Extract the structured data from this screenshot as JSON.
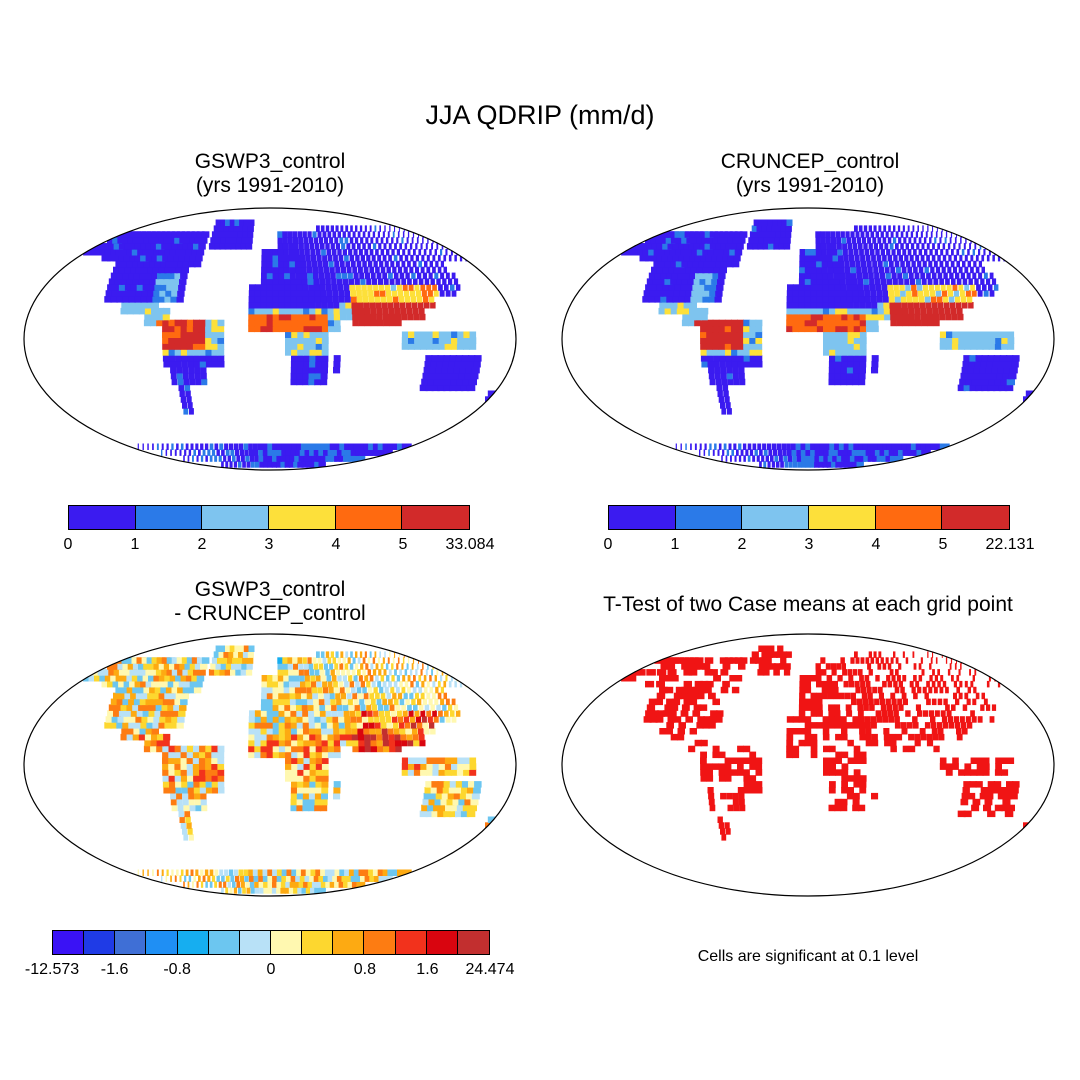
{
  "title": "JJA QDRIP (mm/d)",
  "panels": [
    {
      "id": "gswp3",
      "title_line1": "GSWP3_control",
      "title_line2": "(yrs 1991-2010)",
      "scheme": "abs",
      "colorbar": {
        "colors": [
          "#3b1bf0",
          "#2b7ae8",
          "#7ec4ef",
          "#fde03a",
          "#ff6a10",
          "#d22a2a"
        ],
        "ticks": [
          "0",
          "1",
          "2",
          "3",
          "4",
          "5",
          "33.084"
        ]
      }
    },
    {
      "id": "cruncep",
      "title_line1": "CRUNCEP_control",
      "title_line2": "(yrs 1991-2010)",
      "scheme": "abs",
      "colorbar": {
        "colors": [
          "#3b1bf0",
          "#2b7ae8",
          "#7ec4ef",
          "#fde03a",
          "#ff6a10",
          "#d22a2a"
        ],
        "ticks": [
          "0",
          "1",
          "2",
          "3",
          "4",
          "5",
          "22.131"
        ]
      }
    },
    {
      "id": "diff",
      "title_line1": "GSWP3_control",
      "title_line2": "- CRUNCEP_control",
      "scheme": "diff",
      "colorbar": {
        "colors": [
          "#3a12f5",
          "#1f3be6",
          "#3f6fd6",
          "#1f8ff4",
          "#16aef0",
          "#6cc6f0",
          "#b8e1f7",
          "#fff8b0",
          "#fdd72f",
          "#fdaa12",
          "#fd7c12",
          "#f2321c",
          "#d9050f",
          "#c22f2f"
        ],
        "ticks": [
          "-12.573",
          "-1.6",
          "-0.8",
          "0",
          "0.8",
          "1.6",
          "24.474"
        ]
      }
    },
    {
      "id": "ttest",
      "title_line1": "T-Test of two Case means at each grid point",
      "title_line2": "",
      "scheme": "sig",
      "note": "Cells are significant at 0.1 level"
    }
  ]
}
